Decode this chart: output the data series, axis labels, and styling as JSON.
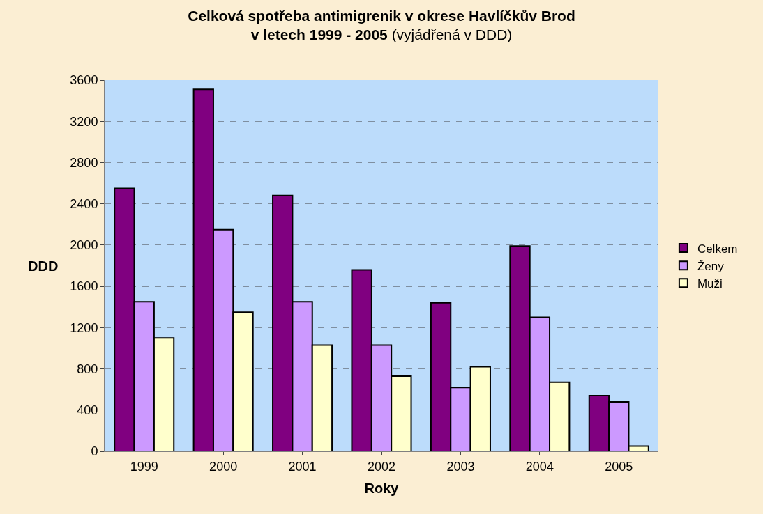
{
  "chart_data": {
    "type": "bar",
    "title": "Celková spotřeba antimigrenik v okrese Havlíčkův Brod\nv letech 1999 - 2005",
    "subtitle": "(vyjádřená v DDD)",
    "xlabel": "Roky",
    "ylabel": "DDD",
    "categories": [
      "1999",
      "2000",
      "2001",
      "2002",
      "2003",
      "2004",
      "2005"
    ],
    "series": [
      {
        "name": "Celkem",
        "color": "#800080",
        "values": [
          2550,
          3510,
          2480,
          1760,
          1440,
          1990,
          540
        ]
      },
      {
        "name": "Ženy",
        "color": "#cc99ff",
        "values": [
          1450,
          2150,
          1450,
          1030,
          620,
          1300,
          480
        ]
      },
      {
        "name": "Muži",
        "color": "#ffffcc",
        "values": [
          1100,
          1350,
          1030,
          730,
          820,
          670,
          50
        ]
      }
    ],
    "ylim": [
      0,
      3600
    ],
    "yticks": [
      0,
      400,
      800,
      1200,
      1600,
      2000,
      2400,
      2800,
      3200,
      3600
    ],
    "grid": "y",
    "legend": "right"
  }
}
